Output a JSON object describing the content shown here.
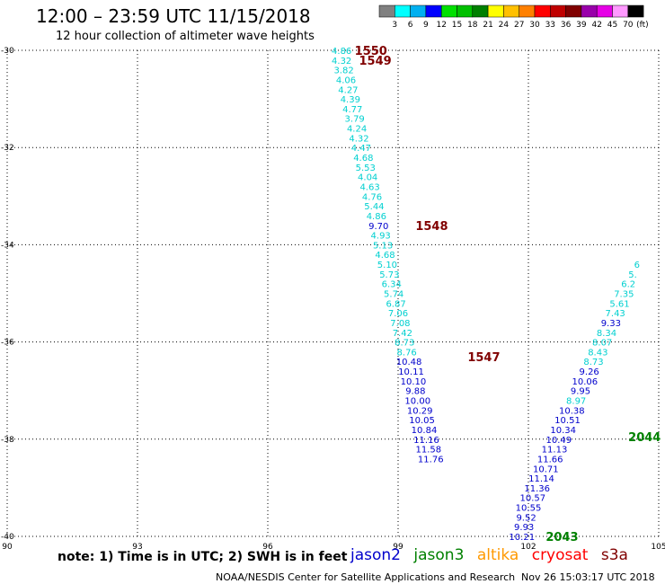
{
  "title": "12:00 – 23:59 UTC 11/15/2018",
  "subtitle": "12 hour collection of altimeter wave heights",
  "scale": {
    "labels": [
      "3",
      "6",
      "9",
      "12",
      "15",
      "18",
      "21",
      "24",
      "27",
      "30",
      "33",
      "36",
      "39",
      "42",
      "45",
      "70"
    ],
    "unit": "(ft)",
    "colors": [
      "#808080",
      "#00ffff",
      "#00b0f0",
      "#0000ff",
      "#00e000",
      "#00c000",
      "#008000",
      "#ffff00",
      "#ffc000",
      "#ff8000",
      "#ff0000",
      "#c00000",
      "#800000",
      "#9900aa",
      "#e600e6",
      "#ff99ff",
      "#000000"
    ]
  },
  "note": "note:  1) Time is in UTC;  2) SWH is in feet",
  "satellites": [
    {
      "name": "jason2",
      "color": "#0000cc"
    },
    {
      "name": "jason3",
      "color": "#008000"
    },
    {
      "name": "altika",
      "color": "#ff9900"
    },
    {
      "name": "cryosat",
      "color": "#ff0000"
    },
    {
      "name": "s3a",
      "color": "#800000"
    }
  ],
  "credit": "NOAA/NESDIS Center for Satellite Applications and Research",
  "timestamp": "Nov 26 15:03:17 UTC 2018",
  "chart_data": {
    "type": "scatter",
    "xlim": [
      90,
      105
    ],
    "ylim": [
      -40,
      -30
    ],
    "x_ticks": [
      "90",
      "93",
      "96",
      "99",
      "102",
      "105"
    ],
    "y_ticks": [
      "-30",
      "-32",
      "-34",
      "-36",
      "-38",
      "-40"
    ],
    "grid": true,
    "series": [
      {
        "name": "s3a",
        "color": "#008b8b",
        "points": [
          {
            "x": 97.7,
            "y": -30.0,
            "v": "4.86",
            "c": "#00d0d0"
          },
          {
            "x": 97.7,
            "y": -30.2,
            "v": "4.32",
            "c": "#00d0d0"
          },
          {
            "x": 97.75,
            "y": -30.4,
            "v": "3.82",
            "c": "#00d0d0"
          },
          {
            "x": 97.8,
            "y": -30.6,
            "v": "4.06",
            "c": "#00d0d0"
          },
          {
            "x": 97.85,
            "y": -30.8,
            "v": "4.27",
            "c": "#00d0d0"
          },
          {
            "x": 97.9,
            "y": -31.0,
            "v": "4.39",
            "c": "#00d0d0"
          },
          {
            "x": 97.95,
            "y": -31.2,
            "v": "4.77",
            "c": "#00d0d0"
          },
          {
            "x": 98.0,
            "y": -31.4,
            "v": "3.79",
            "c": "#00d0d0"
          },
          {
            "x": 98.05,
            "y": -31.6,
            "v": "4.24",
            "c": "#00d0d0"
          },
          {
            "x": 98.1,
            "y": -31.8,
            "v": "4.32",
            "c": "#00d0d0"
          },
          {
            "x": 98.15,
            "y": -32.0,
            "v": "4.47",
            "c": "#00d0d0"
          },
          {
            "x": 98.2,
            "y": -32.2,
            "v": "4.68",
            "c": "#00d0d0"
          },
          {
            "x": 98.25,
            "y": -32.4,
            "v": "5.53",
            "c": "#00d0d0"
          },
          {
            "x": 98.3,
            "y": -32.6,
            "v": "4.04",
            "c": "#00d0d0"
          },
          {
            "x": 98.35,
            "y": -32.8,
            "v": "4.63",
            "c": "#00d0d0"
          },
          {
            "x": 98.4,
            "y": -33.0,
            "v": "4.76",
            "c": "#00d0d0"
          },
          {
            "x": 98.45,
            "y": -33.2,
            "v": "5.44",
            "c": "#00d0d0"
          },
          {
            "x": 98.5,
            "y": -33.4,
            "v": "4.86",
            "c": "#00d0d0"
          },
          {
            "x": 98.55,
            "y": -33.6,
            "v": "9.70",
            "c": "#0000cc"
          },
          {
            "x": 98.6,
            "y": -33.8,
            "v": "4.93",
            "c": "#00d0d0"
          },
          {
            "x": 98.65,
            "y": -34.0,
            "v": "5.13",
            "c": "#00d0d0"
          },
          {
            "x": 98.7,
            "y": -34.2,
            "v": "4.68",
            "c": "#00d0d0"
          },
          {
            "x": 98.75,
            "y": -34.4,
            "v": "5.10",
            "c": "#00d0d0"
          },
          {
            "x": 98.8,
            "y": -34.6,
            "v": "5.73",
            "c": "#00d0d0"
          },
          {
            "x": 98.85,
            "y": -34.8,
            "v": "6.34",
            "c": "#00d0d0"
          },
          {
            "x": 98.9,
            "y": -35.0,
            "v": "5.74",
            "c": "#00d0d0"
          },
          {
            "x": 98.95,
            "y": -35.2,
            "v": "6.87",
            "c": "#00d0d0"
          },
          {
            "x": 99.0,
            "y": -35.4,
            "v": "7.06",
            "c": "#00d0d0"
          },
          {
            "x": 99.05,
            "y": -35.6,
            "v": "7.08",
            "c": "#00d0d0"
          },
          {
            "x": 99.1,
            "y": -35.8,
            "v": "7.42",
            "c": "#00d0d0"
          },
          {
            "x": 99.15,
            "y": -36.0,
            "v": "8.73",
            "c": "#00d0d0"
          },
          {
            "x": 99.2,
            "y": -36.2,
            "v": "8.76",
            "c": "#00d0d0"
          },
          {
            "x": 99.25,
            "y": -36.4,
            "v": "10.48",
            "c": "#0000cc"
          },
          {
            "x": 99.3,
            "y": -36.6,
            "v": "10.11",
            "c": "#0000cc"
          },
          {
            "x": 99.35,
            "y": -36.8,
            "v": "10.10",
            "c": "#0000cc"
          },
          {
            "x": 99.4,
            "y": -37.0,
            "v": "9.88",
            "c": "#0000cc"
          },
          {
            "x": 99.45,
            "y": -37.2,
            "v": "10.00",
            "c": "#0000cc"
          },
          {
            "x": 99.5,
            "y": -37.4,
            "v": "10.29",
            "c": "#0000cc"
          },
          {
            "x": 99.55,
            "y": -37.6,
            "v": "10.05",
            "c": "#0000cc"
          },
          {
            "x": 99.6,
            "y": -37.8,
            "v": "10.84",
            "c": "#0000cc"
          },
          {
            "x": 99.65,
            "y": -38.0,
            "v": "11.16",
            "c": "#0000cc"
          },
          {
            "x": 99.7,
            "y": -38.2,
            "v": "11.58",
            "c": "#0000cc"
          },
          {
            "x": 99.75,
            "y": -38.4,
            "v": "11.76",
            "c": "#0000cc"
          }
        ]
      },
      {
        "name": "jason3",
        "color": "#0000cc",
        "points": [
          {
            "x": 101.85,
            "y": -40.0,
            "v": "10.21",
            "c": "#0000cc"
          },
          {
            "x": 101.9,
            "y": -39.8,
            "v": "9.93",
            "c": "#0000cc"
          },
          {
            "x": 101.95,
            "y": -39.6,
            "v": "9.52",
            "c": "#0000cc"
          },
          {
            "x": 102.0,
            "y": -39.4,
            "v": "10.55",
            "c": "#0000cc"
          },
          {
            "x": 102.1,
            "y": -39.2,
            "v": "10.57",
            "c": "#0000cc"
          },
          {
            "x": 102.2,
            "y": -39.0,
            "v": "11.36",
            "c": "#0000cc"
          },
          {
            "x": 102.3,
            "y": -38.8,
            "v": "11.14",
            "c": "#0000cc"
          },
          {
            "x": 102.4,
            "y": -38.6,
            "v": "10.71",
            "c": "#0000cc"
          },
          {
            "x": 102.5,
            "y": -38.4,
            "v": "11.66",
            "c": "#0000cc"
          },
          {
            "x": 102.6,
            "y": -38.2,
            "v": "11.13",
            "c": "#0000cc"
          },
          {
            "x": 102.7,
            "y": -38.0,
            "v": "10.49",
            "c": "#0000cc"
          },
          {
            "x": 102.8,
            "y": -37.8,
            "v": "10.34",
            "c": "#0000cc"
          },
          {
            "x": 102.9,
            "y": -37.6,
            "v": "10.51",
            "c": "#0000cc"
          },
          {
            "x": 103.0,
            "y": -37.4,
            "v": "10.38",
            "c": "#0000cc"
          },
          {
            "x": 103.1,
            "y": -37.2,
            "v": "8.97",
            "c": "#00d0d0"
          },
          {
            "x": 103.2,
            "y": -37.0,
            "v": "9.95",
            "c": "#0000cc"
          },
          {
            "x": 103.3,
            "y": -36.8,
            "v": "10.06",
            "c": "#0000cc"
          },
          {
            "x": 103.4,
            "y": -36.6,
            "v": "9.26",
            "c": "#0000cc"
          },
          {
            "x": 103.5,
            "y": -36.4,
            "v": "8.73",
            "c": "#00d0d0"
          },
          {
            "x": 103.6,
            "y": -36.2,
            "v": "8.43",
            "c": "#00d0d0"
          },
          {
            "x": 103.7,
            "y": -36.0,
            "v": "8.07",
            "c": "#00d0d0"
          },
          {
            "x": 103.8,
            "y": -35.8,
            "v": "8.34",
            "c": "#00d0d0"
          },
          {
            "x": 103.9,
            "y": -35.6,
            "v": "9.33",
            "c": "#0000cc"
          },
          {
            "x": 104.0,
            "y": -35.4,
            "v": "7.43",
            "c": "#00d0d0"
          },
          {
            "x": 104.1,
            "y": -35.2,
            "v": "5.61",
            "c": "#00d0d0"
          },
          {
            "x": 104.2,
            "y": -35.0,
            "v": "7.35",
            "c": "#00d0d0"
          },
          {
            "x": 104.3,
            "y": -34.8,
            "v": "6.2",
            "c": "#00d0d0"
          },
          {
            "x": 104.4,
            "y": -34.6,
            "v": "5.",
            "c": "#00d0d0"
          },
          {
            "x": 104.5,
            "y": -34.4,
            "v": "6",
            "c": "#00d0d0"
          }
        ]
      }
    ],
    "pass_labels": [
      {
        "text": "1550",
        "x": 98.0,
        "y": -30.0,
        "color": "#800000"
      },
      {
        "text": "1549",
        "x": 98.1,
        "y": -30.2,
        "color": "#800000"
      },
      {
        "text": "1548",
        "x": 99.4,
        "y": -33.6,
        "color": "#800000"
      },
      {
        "text": "1547",
        "x": 100.6,
        "y": -36.3,
        "color": "#800000"
      },
      {
        "text": "2044",
        "x": 104.3,
        "y": -37.95,
        "color": "#008000"
      },
      {
        "text": "2043",
        "x": 102.4,
        "y": -40.0,
        "color": "#008000"
      }
    ]
  }
}
